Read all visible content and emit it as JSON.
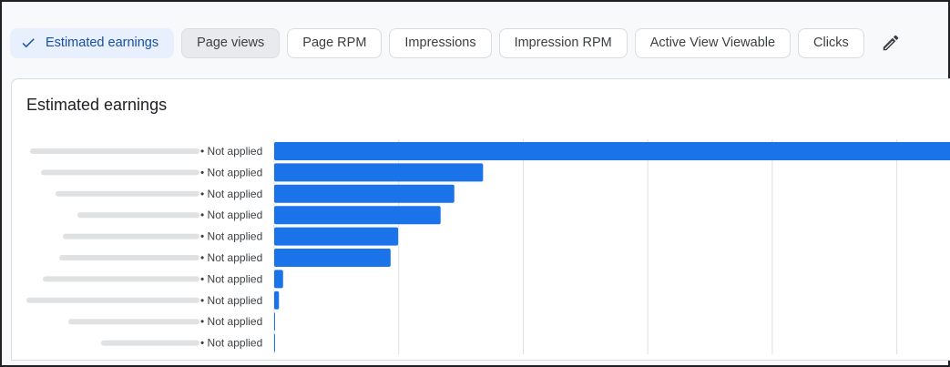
{
  "metric_chips": [
    {
      "label": "Estimated earnings",
      "state": "selected-blue"
    },
    {
      "label": "Page views",
      "state": "selected-grey"
    },
    {
      "label": "Page RPM",
      "state": "default"
    },
    {
      "label": "Impressions",
      "state": "default"
    },
    {
      "label": "Impression RPM",
      "state": "default"
    },
    {
      "label": "Active View Viewable",
      "state": "default"
    },
    {
      "label": "Clicks",
      "state": "default"
    }
  ],
  "icons": {
    "check": "check-icon",
    "edit": "pencil-icon"
  },
  "colors": {
    "bar": "#1a73e8",
    "grid": "#e0e0e0",
    "chip_blue_bg": "#e8f0fe",
    "chip_blue_text": "#174ea6"
  },
  "card": {
    "title": "Estimated earnings"
  },
  "chart_data": {
    "type": "bar",
    "orientation": "horizontal",
    "title": "Estimated earnings",
    "categories": [
      "• Not applied",
      "• Not applied",
      "• Not applied",
      "• Not applied",
      "• Not applied",
      "• Not applied",
      "• Not applied",
      "• Not applied",
      "• Not applied",
      "• Not applied"
    ],
    "category_names_blurred": true,
    "values": [
      100,
      30.5,
      26.3,
      24.3,
      18.1,
      17.0,
      1.3,
      0.7,
      0.1,
      0.1
    ],
    "xlim": [
      0,
      100
    ],
    "grid": true,
    "legend": "none"
  }
}
